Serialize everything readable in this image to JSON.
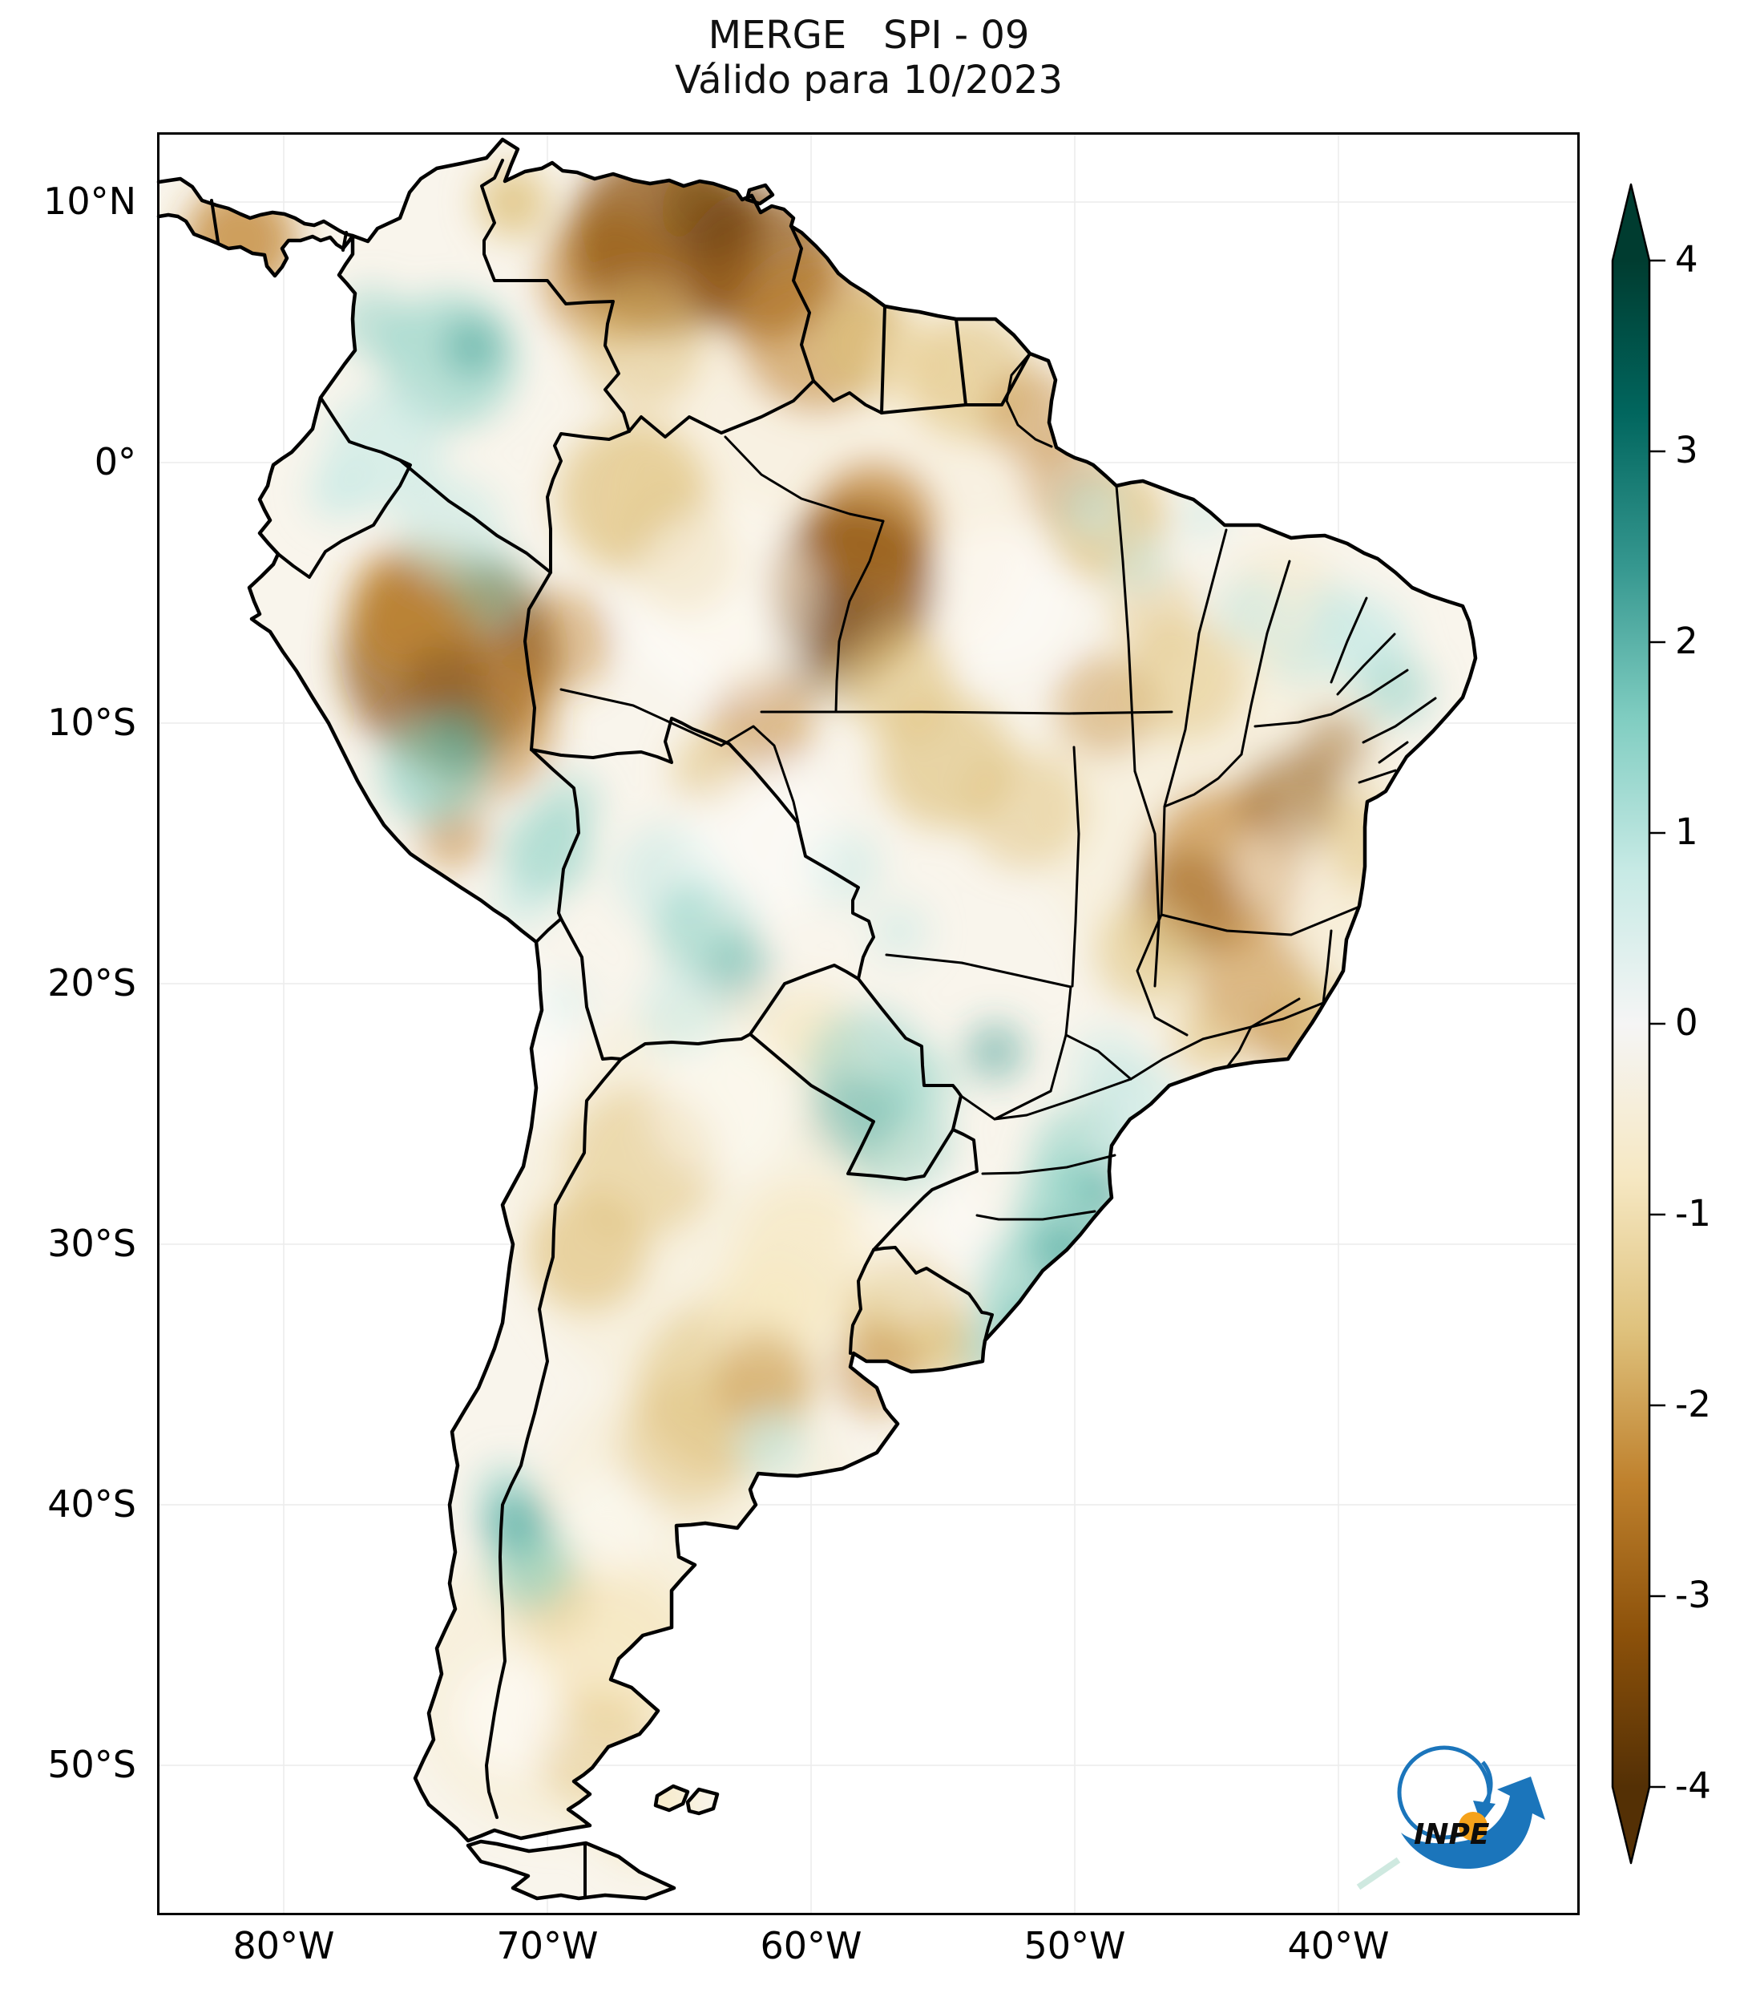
{
  "title": {
    "line1": "MERGE   SPI - 09",
    "line2": "Válido para 10/2023"
  },
  "axes": {
    "lat_labels": [
      "10°N",
      "0°",
      "10°S",
      "20°S",
      "30°S",
      "40°S",
      "50°S"
    ],
    "lon_labels": [
      "80°W",
      "70°W",
      "60°W",
      "50°W",
      "40°W"
    ]
  },
  "colorbar": {
    "tick_labels": [
      "4",
      "3",
      "2",
      "1",
      "0",
      "-1",
      "-2",
      "-3",
      "-4"
    ],
    "vmin": -4,
    "vmax": 4,
    "extend": "both",
    "colormap_name": "BrBG (brown = dry, white = neutral, teal = wet)"
  },
  "logo": {
    "text": "INPE",
    "blue": "#1b75bb",
    "orange": "#f5a21b"
  },
  "colors": {
    "frame": "#000000",
    "land_base": "#f9f5ec",
    "grid": "#ececec",
    "brown_dark": "#543005",
    "brown_mid": "#8c510a",
    "brown": "#bf812d",
    "tan": "#dfc27d",
    "tan_light": "#f6e8c3",
    "teal_light": "#c7eae5",
    "teal": "#80cdc1",
    "teal_mid": "#35978f",
    "teal_dark": "#01665e",
    "teal_darkest": "#003c30"
  },
  "chart_data": {
    "type": "heatmap",
    "title": "MERGE   SPI - 09",
    "subtitle": "Válido para 10/2023",
    "index": "SPI-09 (9-month Standardized Precipitation Index) from MERGE precipitation",
    "valid_for": "10/2023",
    "region": "South America",
    "x_ticks": [
      "80°W",
      "70°W",
      "60°W",
      "50°W",
      "40°W"
    ],
    "y_ticks": [
      "10°N",
      "0°",
      "10°S",
      "20°S",
      "30°S",
      "40°S",
      "50°S"
    ],
    "lon_range_approx": [
      "85°W",
      "31°W"
    ],
    "lat_range_approx": [
      "13°N",
      "56°S"
    ],
    "grid": "faint light-gray graticule at labeled ticks",
    "legend_position": "right vertical colorbar, arrow-capped both ends",
    "colorbar": {
      "min": -4,
      "max": 4,
      "ticks": [
        4,
        3,
        2,
        1,
        0,
        -1,
        -2,
        -3,
        -4
      ],
      "colormap": "BrBG",
      "extend": "both"
    },
    "readings_estimated_spi": [
      {
        "region": "Northern Venezuela / Caribbean coast",
        "spi": -2.5
      },
      {
        "region": "Guyana–Suriname hinterland",
        "spi": -1.5
      },
      {
        "region": "Eastern Amazonas / western Pará (central Amazon)",
        "spi": -2.5
      },
      {
        "region": "Northern Peru / Peru–Brazil border",
        "spi": -2.5
      },
      {
        "region": "Interior Colombia",
        "spi": 1.0
      },
      {
        "region": "Southeastern Peru (Madre de Dios)",
        "spi": 1.0
      },
      {
        "region": "Bolivian lowlands / Pantanal",
        "spi": 1.0
      },
      {
        "region": "Northeast Brazil coast (RN–PE)",
        "spi": 1.0
      },
      {
        "region": "Bahia / Minas Gerais interior",
        "spi": -2.0
      },
      {
        "region": "Goiás / Tocantins",
        "spi": -1.0
      },
      {
        "region": "Southern Brazil (SP, PR, SC, RS)",
        "spi": 1.5
      },
      {
        "region": "Uruguay",
        "spi": -1.5
      },
      {
        "region": "Pampas / Buenos Aires",
        "spi": -1.0
      },
      {
        "region": "Northern Patagonia teal pocket (Neuquén–Río Negro)",
        "spi": 2.0
      },
      {
        "region": "Patagonia generally",
        "spi": -0.5
      }
    ]
  }
}
